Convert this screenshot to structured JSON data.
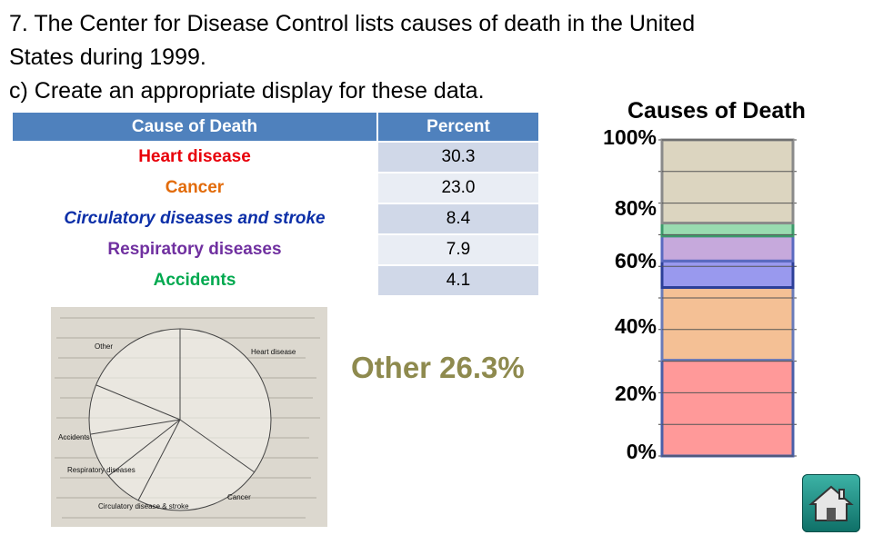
{
  "question": {
    "line1": "7. The Center for Disease Control lists causes of death in the United",
    "line2": "States during 1999.",
    "line3": "c) Create an appropriate display for these data."
  },
  "table": {
    "headers": [
      "Cause of Death",
      "Percent"
    ],
    "rows": [
      {
        "cause": "Heart disease",
        "percent": "30.3",
        "italic": false
      },
      {
        "cause": "Cancer",
        "percent": "23.0",
        "italic": false
      },
      {
        "cause": "Circulatory diseases and stroke",
        "percent": "8.4",
        "italic": true
      },
      {
        "cause": "Respiratory diseases",
        "percent": "7.9",
        "italic": false
      },
      {
        "cause": "Accidents",
        "percent": "4.1",
        "italic": false
      }
    ]
  },
  "other_label": "Other 26.3%",
  "pie_image": {
    "labels": [
      "Other",
      "Heart disease",
      "Accidents",
      "Respiratory diseases",
      "Circulatory disease & stroke",
      "Cancer"
    ]
  },
  "colors": {
    "heart": "#ff9999",
    "cancer": "#f4c095",
    "circulatory": "#9999ee",
    "respiratory": "#c6a9dc",
    "accidents": "#99dbb0",
    "other": "#dcd5c0",
    "label_heart": "#e8000a",
    "label_cancer": "#e26b0a",
    "label_circ": "#0c2fa8",
    "label_resp": "#7030a0",
    "label_acc": "#00a94f",
    "table_header": "#4f81bd"
  },
  "chart_data": {
    "type": "bar",
    "title": "Causes of Death",
    "stacked": true,
    "categories": [
      ""
    ],
    "series": [
      {
        "name": "Heart disease",
        "values": [
          30.3
        ]
      },
      {
        "name": "Cancer",
        "values": [
          23.0
        ]
      },
      {
        "name": "Circulatory diseases and stroke",
        "values": [
          8.4
        ]
      },
      {
        "name": "Respiratory diseases",
        "values": [
          7.9
        ]
      },
      {
        "name": "Accidents",
        "values": [
          4.1
        ]
      },
      {
        "name": "Other",
        "values": [
          26.3
        ]
      }
    ],
    "yticks": [
      "0%",
      "20%",
      "40%",
      "60%",
      "80%",
      "100%"
    ],
    "ylim": [
      0,
      100
    ],
    "grid": true
  },
  "home_icon": "home-icon"
}
